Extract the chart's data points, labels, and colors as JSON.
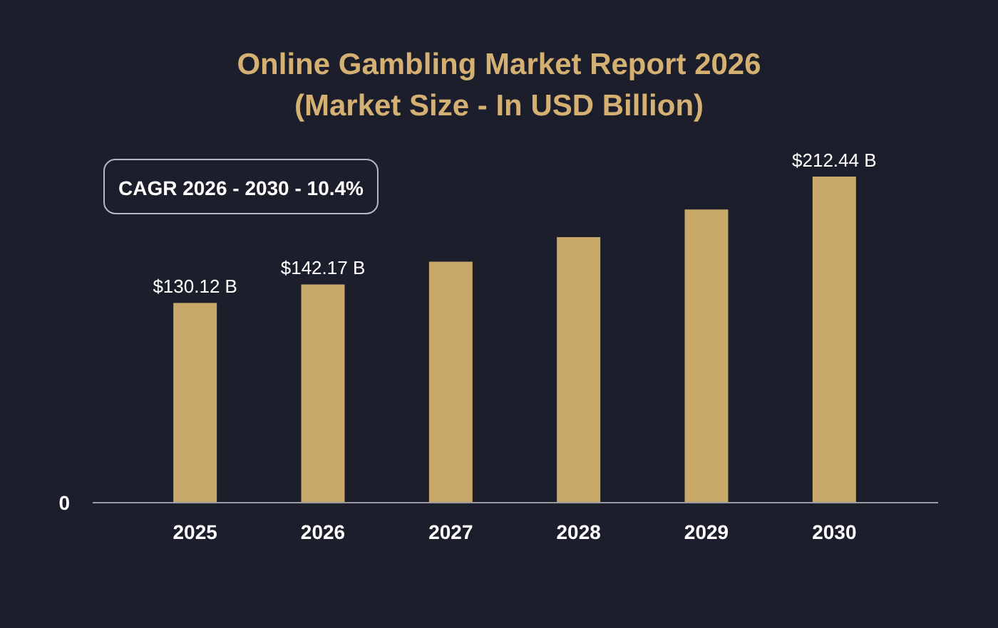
{
  "chart_data": {
    "type": "bar",
    "title": "Online Gambling Market Report 2026\n(Market Size - In USD Billion)",
    "categories": [
      "2025",
      "2026",
      "2027",
      "2028",
      "2029",
      "2030"
    ],
    "values": [
      130.12,
      142.17,
      157,
      173,
      191,
      212.44
    ],
    "value_labels": [
      "$130.12 B",
      "$142.17 B",
      null,
      null,
      null,
      "$212.44 B"
    ],
    "color": "#c9a96a",
    "annotations": [
      "CAGR 2026 - 2030 - 10.4%",
      "0"
    ]
  }
}
